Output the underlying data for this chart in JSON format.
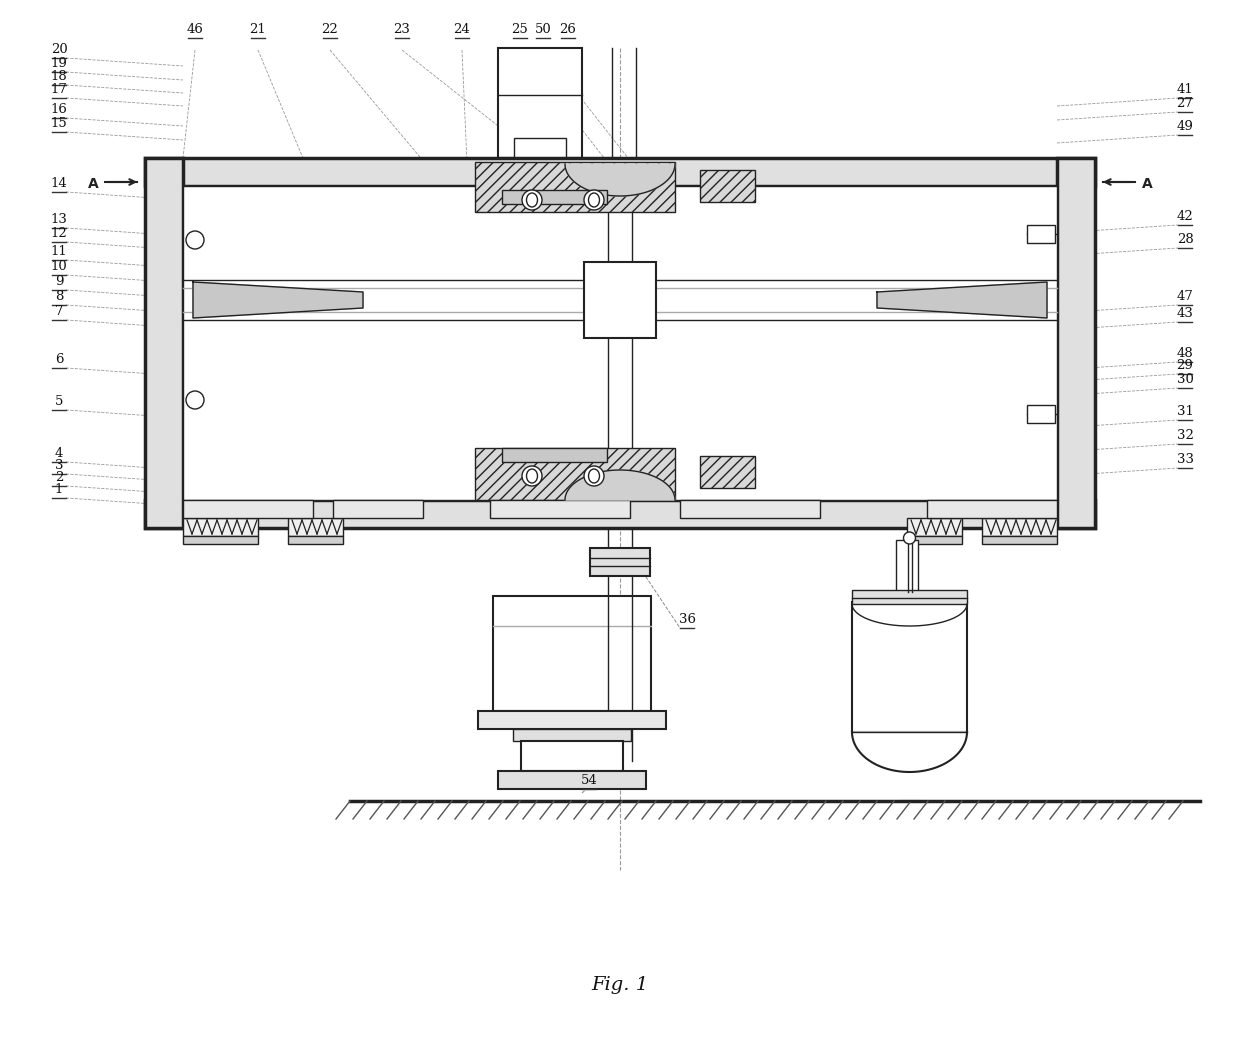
{
  "fig_label": "Fig. 1",
  "bg_color": "#ffffff",
  "lc": "#222222",
  "lc_light": "#666666",
  "lc_dash": "#777777",
  "fs": 9.5,
  "left_labels_y": [
    [
      "20",
      58
    ],
    [
      "19",
      72
    ],
    [
      "18",
      85
    ],
    [
      "17",
      98
    ],
    [
      "16",
      118
    ],
    [
      "15",
      132
    ],
    [
      "14",
      192
    ],
    [
      "13",
      228
    ],
    [
      "12",
      242
    ],
    [
      "11",
      260
    ],
    [
      "10",
      275
    ],
    [
      "9",
      290
    ],
    [
      "8",
      305
    ],
    [
      "7",
      320
    ],
    [
      "6",
      368
    ],
    [
      "5",
      410
    ],
    [
      "4",
      462
    ],
    [
      "3",
      474
    ],
    [
      "2",
      486
    ],
    [
      "1",
      498
    ]
  ],
  "right_labels_y": [
    [
      "41",
      98
    ],
    [
      "27",
      112
    ],
    [
      "49",
      135
    ],
    [
      "42",
      225
    ],
    [
      "28",
      248
    ],
    [
      "47",
      305
    ],
    [
      "43",
      322
    ],
    [
      "48",
      362
    ],
    [
      "29",
      374
    ],
    [
      "30",
      388
    ],
    [
      "31",
      420
    ],
    [
      "32",
      444
    ],
    [
      "33",
      468
    ]
  ],
  "top_labels_x": [
    [
      "46",
      195
    ],
    [
      "21",
      258
    ],
    [
      "22",
      330
    ],
    [
      "23",
      402
    ],
    [
      "24",
      462
    ],
    [
      "25",
      520
    ],
    [
      "50",
      543
    ],
    [
      "26",
      568
    ]
  ]
}
